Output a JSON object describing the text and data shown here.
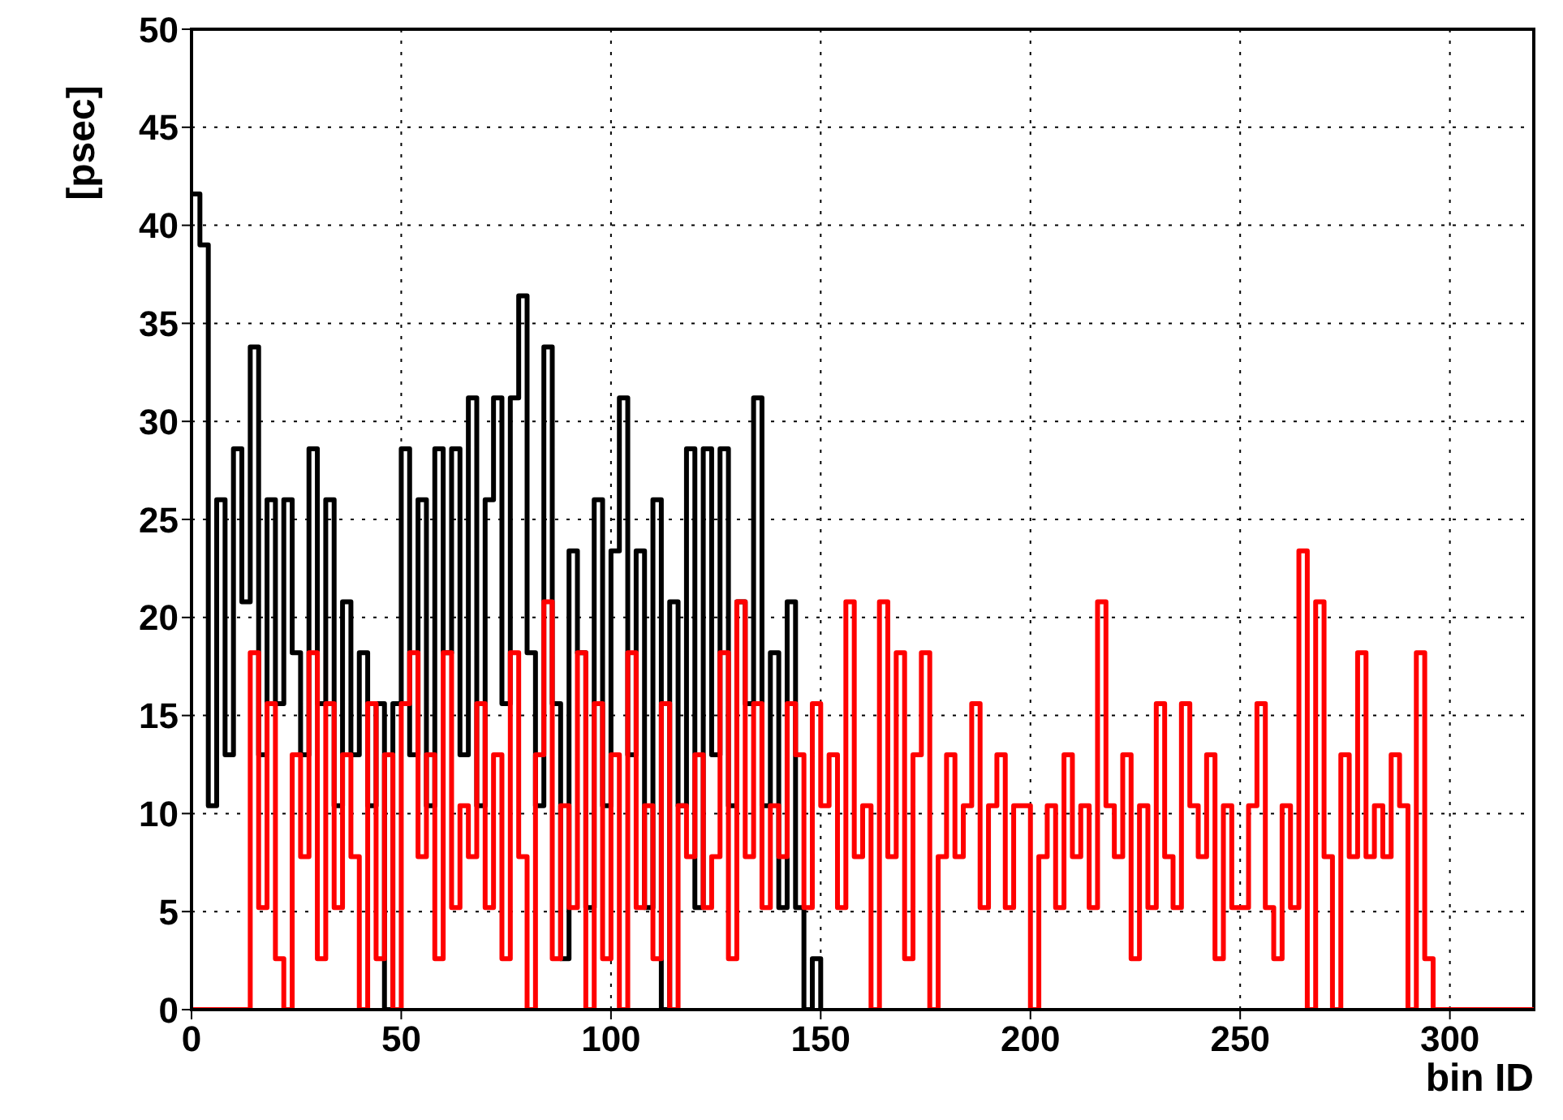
{
  "chart_data": {
    "type": "step",
    "xlabel": "bin ID",
    "ylabel": "[psec]",
    "xlim": [
      0,
      320
    ],
    "ylim": [
      0,
      50
    ],
    "xticks": [
      0,
      50,
      100,
      150,
      200,
      250,
      300
    ],
    "yticks": [
      0,
      5,
      10,
      15,
      20,
      25,
      30,
      35,
      40,
      45,
      50
    ],
    "grid": true,
    "series": [
      {
        "color": "#000000",
        "x": [
          0,
          2,
          4,
          6,
          8,
          10,
          12,
          14,
          16,
          18,
          20,
          22,
          24,
          26,
          28,
          30,
          32,
          34,
          36,
          38,
          40,
          42,
          44,
          46,
          48,
          50,
          52,
          54,
          56,
          58,
          60,
          62,
          64,
          66,
          68,
          70,
          72,
          74,
          76,
          78,
          80,
          82,
          84,
          86,
          88,
          90,
          92,
          94,
          96,
          98,
          100,
          102,
          104,
          106,
          108,
          110,
          112,
          114,
          116,
          118,
          120,
          122,
          124,
          126,
          128,
          130,
          132,
          134,
          136,
          138,
          140,
          142,
          144,
          146,
          148,
          150
        ],
        "values": [
          41.6,
          39,
          10.4,
          26,
          13,
          28.6,
          20.8,
          33.8,
          13,
          26,
          15.6,
          26,
          18.2,
          13,
          28.6,
          15.6,
          26,
          10.4,
          20.8,
          13,
          18.2,
          10.4,
          15.6,
          0,
          15.6,
          28.6,
          13,
          26,
          10.4,
          28.6,
          18.2,
          28.6,
          13,
          31.2,
          10.4,
          26,
          31.2,
          15.6,
          31.2,
          36.4,
          18.2,
          10.4,
          33.8,
          15.6,
          2.6,
          23.4,
          18.2,
          5.2,
          26,
          10.4,
          23.4,
          31.2,
          13,
          23.4,
          5.2,
          26,
          0,
          20.8,
          10.4,
          28.6,
          5.2,
          28.6,
          13,
          28.6,
          10.4,
          20.8,
          15.6,
          31.2,
          10.4,
          18.2,
          5.2,
          20.8,
          5.2,
          0,
          2.6,
          0
        ]
      },
      {
        "color": "#ff0000",
        "x": [
          0,
          14,
          16,
          18,
          20,
          22,
          24,
          26,
          28,
          30,
          32,
          34,
          36,
          38,
          40,
          42,
          44,
          46,
          48,
          50,
          52,
          54,
          56,
          58,
          60,
          62,
          64,
          66,
          68,
          70,
          72,
          74,
          76,
          78,
          80,
          82,
          84,
          86,
          88,
          90,
          92,
          94,
          96,
          98,
          100,
          102,
          104,
          106,
          108,
          110,
          112,
          114,
          116,
          118,
          120,
          122,
          124,
          126,
          128,
          130,
          132,
          134,
          136,
          138,
          140,
          142,
          144,
          146,
          148,
          150,
          152,
          154,
          156,
          158,
          160,
          162,
          164,
          166,
          168,
          170,
          172,
          174,
          176,
          178,
          180,
          182,
          184,
          186,
          188,
          190,
          192,
          194,
          196,
          198,
          200,
          202,
          204,
          206,
          208,
          210,
          212,
          214,
          216,
          218,
          220,
          222,
          224,
          226,
          228,
          230,
          232,
          234,
          236,
          238,
          240,
          242,
          244,
          246,
          248,
          250,
          252,
          254,
          256,
          258,
          260,
          262,
          264,
          266,
          268,
          270,
          272,
          274,
          276,
          278,
          280,
          282,
          284,
          286,
          288,
          290,
          292,
          294,
          296,
          298,
          320
        ],
        "values": [
          0,
          18.2,
          5.2,
          15.6,
          2.6,
          0,
          13,
          7.8,
          18.2,
          2.6,
          15.6,
          5.2,
          13,
          7.8,
          0,
          15.6,
          2.6,
          13,
          0,
          15.6,
          18.2,
          7.8,
          13,
          2.6,
          18.2,
          5.2,
          10.4,
          7.8,
          15.6,
          5.2,
          13,
          2.6,
          18.2,
          7.8,
          0,
          13,
          20.8,
          2.6,
          10.4,
          5.2,
          18.2,
          0,
          15.6,
          2.6,
          13,
          0,
          18.2,
          5.2,
          10.4,
          2.6,
          15.6,
          0,
          10.4,
          7.8,
          13,
          5.2,
          7.8,
          18.2,
          2.6,
          20.8,
          7.8,
          15.6,
          5.2,
          10.4,
          7.8,
          15.6,
          13,
          5.2,
          15.6,
          10.4,
          13,
          5.2,
          20.8,
          7.8,
          10.4,
          0,
          20.8,
          7.8,
          18.2,
          2.6,
          13,
          18.2,
          0,
          7.8,
          13,
          7.8,
          10.4,
          15.6,
          5.2,
          10.4,
          13,
          5.2,
          10.4,
          10.4,
          0,
          7.8,
          10.4,
          5.2,
          13,
          7.8,
          10.4,
          5.2,
          20.8,
          10.4,
          7.8,
          13,
          2.6,
          10.4,
          5.2,
          15.6,
          7.8,
          5.2,
          15.6,
          10.4,
          7.8,
          13,
          2.6,
          10.4,
          5.2,
          5.2,
          10.4,
          15.6,
          5.2,
          2.6,
          10.4,
          5.2,
          23.4,
          0,
          20.8,
          7.8,
          0,
          13,
          7.8,
          18.2,
          7.8,
          10.4,
          7.8,
          13,
          10.4,
          0,
          18.2,
          2.6,
          0,
          0,
          0
        ]
      }
    ]
  }
}
